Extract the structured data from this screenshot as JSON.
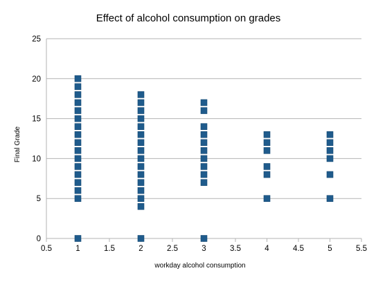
{
  "chart_data": {
    "type": "scatter",
    "title": "Effect of alcohol consumption on grades",
    "xlabel": "workday alcohol consumption",
    "ylabel": "Final Grade",
    "xlim": [
      0.5,
      5.5
    ],
    "ylim": [
      0,
      25
    ],
    "xticks": [
      "0.5",
      "1",
      "1.5",
      "2",
      "2.5",
      "3",
      "3.5",
      "4",
      "4.5",
      "5",
      "5.5"
    ],
    "yticks": [
      "0",
      "5",
      "10",
      "15",
      "20",
      "25"
    ],
    "grid": true,
    "legend": "none",
    "marker": "square",
    "color": "#1f5b8c",
    "points": [
      {
        "x": 1,
        "y": 0
      },
      {
        "x": 1,
        "y": 5
      },
      {
        "x": 1,
        "y": 6
      },
      {
        "x": 1,
        "y": 7
      },
      {
        "x": 1,
        "y": 8
      },
      {
        "x": 1,
        "y": 9
      },
      {
        "x": 1,
        "y": 10
      },
      {
        "x": 1,
        "y": 11
      },
      {
        "x": 1,
        "y": 12
      },
      {
        "x": 1,
        "y": 13
      },
      {
        "x": 1,
        "y": 14
      },
      {
        "x": 1,
        "y": 15
      },
      {
        "x": 1,
        "y": 16
      },
      {
        "x": 1,
        "y": 17
      },
      {
        "x": 1,
        "y": 18
      },
      {
        "x": 1,
        "y": 19
      },
      {
        "x": 1,
        "y": 20
      },
      {
        "x": 2,
        "y": 0
      },
      {
        "x": 2,
        "y": 4
      },
      {
        "x": 2,
        "y": 5
      },
      {
        "x": 2,
        "y": 6
      },
      {
        "x": 2,
        "y": 7
      },
      {
        "x": 2,
        "y": 8
      },
      {
        "x": 2,
        "y": 9
      },
      {
        "x": 2,
        "y": 10
      },
      {
        "x": 2,
        "y": 11
      },
      {
        "x": 2,
        "y": 12
      },
      {
        "x": 2,
        "y": 13
      },
      {
        "x": 2,
        "y": 14
      },
      {
        "x": 2,
        "y": 15
      },
      {
        "x": 2,
        "y": 16
      },
      {
        "x": 2,
        "y": 17
      },
      {
        "x": 2,
        "y": 18
      },
      {
        "x": 3,
        "y": 0
      },
      {
        "x": 3,
        "y": 7
      },
      {
        "x": 3,
        "y": 8
      },
      {
        "x": 3,
        "y": 9
      },
      {
        "x": 3,
        "y": 10
      },
      {
        "x": 3,
        "y": 11
      },
      {
        "x": 3,
        "y": 12
      },
      {
        "x": 3,
        "y": 13
      },
      {
        "x": 3,
        "y": 14
      },
      {
        "x": 3,
        "y": 16
      },
      {
        "x": 3,
        "y": 17
      },
      {
        "x": 4,
        "y": 5
      },
      {
        "x": 4,
        "y": 8
      },
      {
        "x": 4,
        "y": 9
      },
      {
        "x": 4,
        "y": 11
      },
      {
        "x": 4,
        "y": 12
      },
      {
        "x": 4,
        "y": 13
      },
      {
        "x": 5,
        "y": 5
      },
      {
        "x": 5,
        "y": 8
      },
      {
        "x": 5,
        "y": 10
      },
      {
        "x": 5,
        "y": 11
      },
      {
        "x": 5,
        "y": 12
      },
      {
        "x": 5,
        "y": 13
      }
    ]
  }
}
